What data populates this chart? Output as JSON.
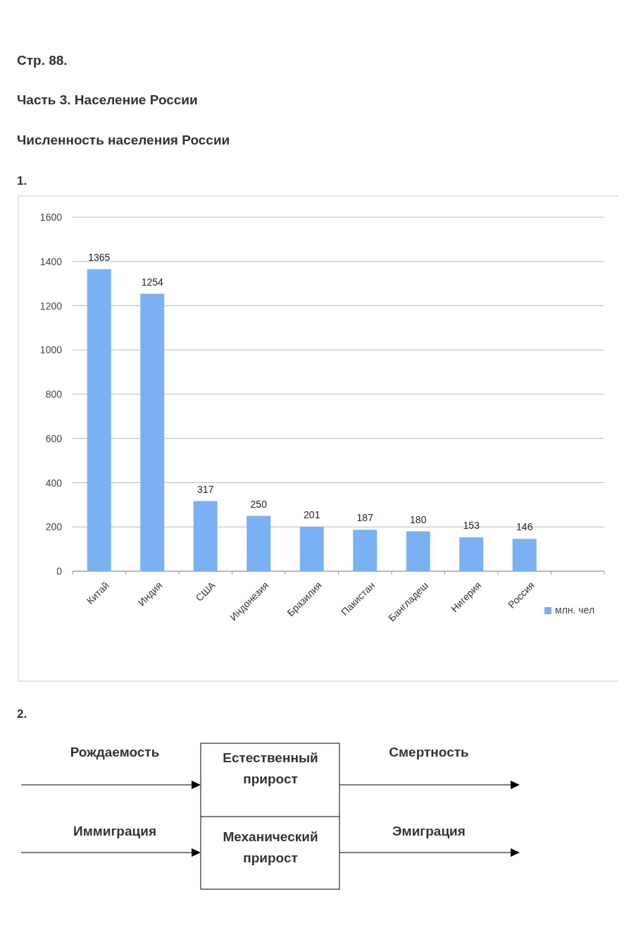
{
  "chart_data": [
    {
      "type": "bar",
      "title": "Численность населения России",
      "annotations": [
        "Стр. 88.",
        "Часть 3. Население России",
        "1."
      ],
      "categories": [
        "Китай",
        "Индия",
        "США",
        "Индонезия",
        "Бразилия",
        "Пакистан",
        "Бангладеш",
        "Нигерия",
        "Россия",
        null
      ],
      "series": [
        {
          "name": "млн. чел",
          "color": "#7ab1f2",
          "values": [
            1365,
            1254,
            317,
            250,
            201,
            187,
            180,
            153,
            146,
            null
          ]
        }
      ],
      "ylim": [
        0,
        1600
      ],
      "yticks": [
        0,
        200,
        400,
        600,
        800,
        1000,
        1200,
        1400,
        1600
      ],
      "grid": "y",
      "legend": "right",
      "data_labels": true
    },
    {
      "type": "other",
      "title": "2.",
      "annotations": [
        "Рождаемость",
        "Естественный прирост",
        "Смертность",
        "Иммиграция",
        "Механический прирост",
        "Эмиграция"
      ]
    }
  ]
}
